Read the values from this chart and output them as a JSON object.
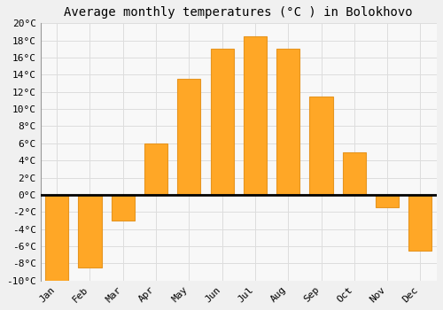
{
  "title": "Average monthly temperatures (°C ) in Bolokhovo",
  "months": [
    "Jan",
    "Feb",
    "Mar",
    "Apr",
    "May",
    "Jun",
    "Jul",
    "Aug",
    "Sep",
    "Oct",
    "Nov",
    "Dec"
  ],
  "values": [
    -10,
    -8.5,
    -3,
    6,
    13.5,
    17,
    18.5,
    17,
    11.5,
    5,
    -1.5,
    -6.5
  ],
  "bar_color": "#FFA726",
  "bar_edge_color": "#E69520",
  "ylim": [
    -10,
    20
  ],
  "yticks": [
    -10,
    -8,
    -6,
    -4,
    -2,
    0,
    2,
    4,
    6,
    8,
    10,
    12,
    14,
    16,
    18,
    20
  ],
  "ytick_labels": [
    "-10°C",
    "-8°C",
    "-6°C",
    "-4°C",
    "-2°C",
    "0°C",
    "2°C",
    "4°C",
    "6°C",
    "8°C",
    "10°C",
    "12°C",
    "14°C",
    "16°C",
    "18°C",
    "20°C"
  ],
  "background_color": "#f0f0f0",
  "plot_bg_color": "#f8f8f8",
  "grid_color": "#dddddd",
  "title_fontsize": 10,
  "tick_fontsize": 8
}
